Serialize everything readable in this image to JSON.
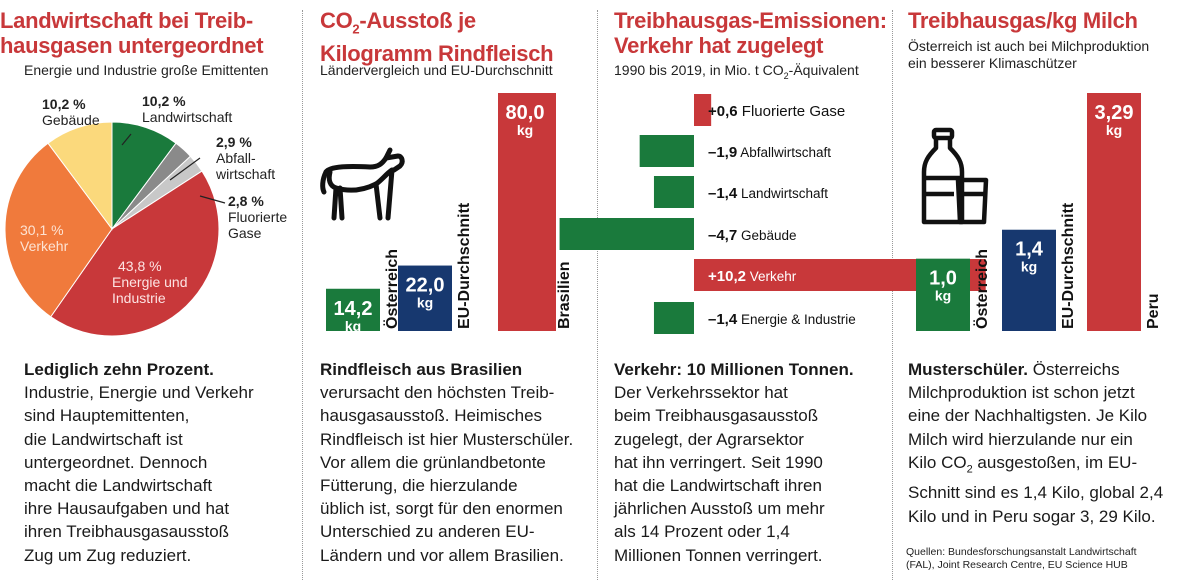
{
  "colors": {
    "red": "#c8383a",
    "green": "#1a7a3c",
    "navy": "#17386f",
    "orange": "#f07a3c",
    "yellow": "#fbd97c",
    "grey_dark": "#8a8a8a",
    "grey_light": "#c8c8c8"
  },
  "panel1": {
    "title_line1": "Landwirtschaft bei Treib-",
    "title_line2": "hausgasen untergeordnet",
    "subtitle": "Energie und Industrie große Emittenten",
    "chart_data": {
      "type": "pie",
      "title": "Landwirtschaft bei Treibhausgasen untergeordnet",
      "slices": [
        {
          "name": "Landwirtschaft",
          "value": 10.2,
          "label": "10,2 %",
          "color": "#1a7a3c"
        },
        {
          "name": "Abfallwirtschaft",
          "value": 2.9,
          "label": "2,9 %",
          "color": "#8a8a8a"
        },
        {
          "name": "Fluorierte Gase",
          "value": 2.8,
          "label": "2,8 %",
          "color": "#c8c8c8"
        },
        {
          "name": "Energie und Industrie",
          "value": 43.8,
          "label": "43,8 %",
          "color": "#c8383a"
        },
        {
          "name": "Verkehr",
          "value": 30.1,
          "label": "30,1 %",
          "color": "#f07a3c"
        },
        {
          "name": "Gebäude",
          "value": 10.2,
          "label": "10,2 %",
          "color": "#fbd97c"
        }
      ]
    },
    "labels": {
      "gebaeude_pct": "10,2 %",
      "gebaeude": "Gebäude",
      "landw_pct": "10,2 %",
      "landw": "Landwirtschaft",
      "abfall_pct": "2,9 %",
      "abfall_1": "Abfall-",
      "abfall_2": "wirtschaft",
      "fluor_pct": "2,8 %",
      "fluor_1": "Fluorierte",
      "fluor_2": "Gase",
      "verkehr_pct": "30,1 %",
      "verkehr": "Verkehr",
      "energie_pct": "43,8 %",
      "energie_1": "Energie und",
      "energie_2": "Industrie"
    },
    "text_bold": "Lediglich zehn Prozent.",
    "text_lines": [
      "Industrie, Energie und Verkehr",
      "sind Hauptemittenten,",
      "die Landwirtschaft ist",
      "untergeordnet. Dennoch",
      "macht die Landwirtschaft",
      "ihre Hausaufgaben und hat",
      "ihren Treibhausgasausstoß",
      "Zug um Zug reduziert."
    ]
  },
  "panel2": {
    "title_line1_a": "CO",
    "title_line1_sub": "2",
    "title_line1_b": "-Ausstoß je",
    "title_line2": "Kilogramm Rindfleisch",
    "subtitle": "Ländervergleich und EU-Durchschnitt",
    "cow_icon": "cow-icon",
    "unit": "kg",
    "chart_data": {
      "type": "bar",
      "title": "CO2-Ausstoß je Kilogramm Rindfleisch",
      "categories": [
        "Österreich",
        "EU-Durchschnitt",
        "Brasilien"
      ],
      "values": [
        14.2,
        22.0,
        80.0
      ],
      "value_labels": [
        "14,2",
        "22,0",
        "80,0"
      ],
      "colors": [
        "#1a7a3c",
        "#17386f",
        "#c8383a"
      ],
      "ylabel": "kg",
      "ylim": [
        0,
        80
      ]
    },
    "text_bold": "Rindfleisch aus Brasilien",
    "text_lines": [
      "verursacht den höchsten Treib-",
      "hausgasausstoß. Heimisches",
      "Rindfleisch ist hier Musterschüler.",
      "Vor allem die grünlandbetonte",
      "Fütterung, die hierzulande",
      "üblich ist, sorgt für den enormen",
      "Unterschied zu anderen EU-",
      "Ländern und vor allem Brasilien."
    ]
  },
  "panel3": {
    "title_line1": "Treibhausgas-Emissionen:",
    "title_line2": "Verkehr hat zugelegt",
    "subtitle_a": "1990 bis 2019, in Mio. t CO",
    "subtitle_sub": "2",
    "subtitle_b": "-Äquivalent",
    "chart_data": {
      "type": "bar",
      "orientation": "horizontal-diverging",
      "title": "Treibhausgas-Emissionen: Verkehr hat zugelegt",
      "ylabel": "Mio. t CO2-Äquivalent, 1990 bis 2019",
      "categories": [
        "Fluorierte Gase",
        "Abfallwirtschaft",
        "Landwirtschaft",
        "Gebäude",
        "Verkehr",
        "Energie & Industrie"
      ],
      "values": [
        0.6,
        -1.9,
        -1.4,
        -4.7,
        10.2,
        -1.4
      ],
      "value_labels": [
        "+0,6",
        "–1,9",
        "–1,4",
        "–4,7",
        "+10,2",
        "–1,4"
      ],
      "xlim": [
        -4.7,
        10.2
      ]
    },
    "text_bold": "Verkehr: 10 Millionen Tonnen.",
    "text_lines": [
      "Der Verkehrssektor hat",
      "beim Treibhausgasausstoß",
      "zugelegt, der Agrarsektor",
      "hat ihn verringert. Seit 1990",
      "hat die Landwirtschaft ihren",
      "jährlichen Ausstoß um mehr",
      "als 14 Prozent oder 1,4",
      "Millionen Tonnen verringert."
    ]
  },
  "panel4": {
    "title": "Treibhausgas/kg Milch",
    "subtitle_1": "Österreich ist auch bei Milchproduktion",
    "subtitle_2": "ein besserer Klimaschützer",
    "milk_icon": "milk-bottle-and-glass-icon",
    "unit": "kg",
    "chart_data": {
      "type": "bar",
      "title": "Treibhausgas/kg Milch",
      "categories": [
        "Österreich",
        "EU-Durchschnitt",
        "Peru"
      ],
      "values": [
        1.0,
        1.4,
        3.29
      ],
      "value_labels": [
        "1,0",
        "1,4",
        "3,29"
      ],
      "colors": [
        "#1a7a3c",
        "#17386f",
        "#c8383a"
      ],
      "ylabel": "kg",
      "ylim": [
        0,
        3.29
      ]
    },
    "text_bold": "Musterschüler.",
    "text_first": " Österreichs",
    "text_lines": [
      "Milchproduktion ist schon jetzt",
      "eine der Nachhaltigsten. Je Kilo",
      "Milch wird hierzulande nur ein"
    ],
    "text_co2_a": "Kilo CO",
    "text_co2_sub": "2",
    "text_co2_b": " ausgestoßen, im EU-",
    "text_lines_2": [
      "Schnitt sind es 1,4 Kilo, global 2,4",
      "Kilo und in Peru sogar 3, 29 Kilo."
    ],
    "source_1": "Quellen: Bundesforschungsanstalt Landwirtschaft",
    "source_2": "(FAL), Joint Research Centre, EU Science HUB"
  }
}
